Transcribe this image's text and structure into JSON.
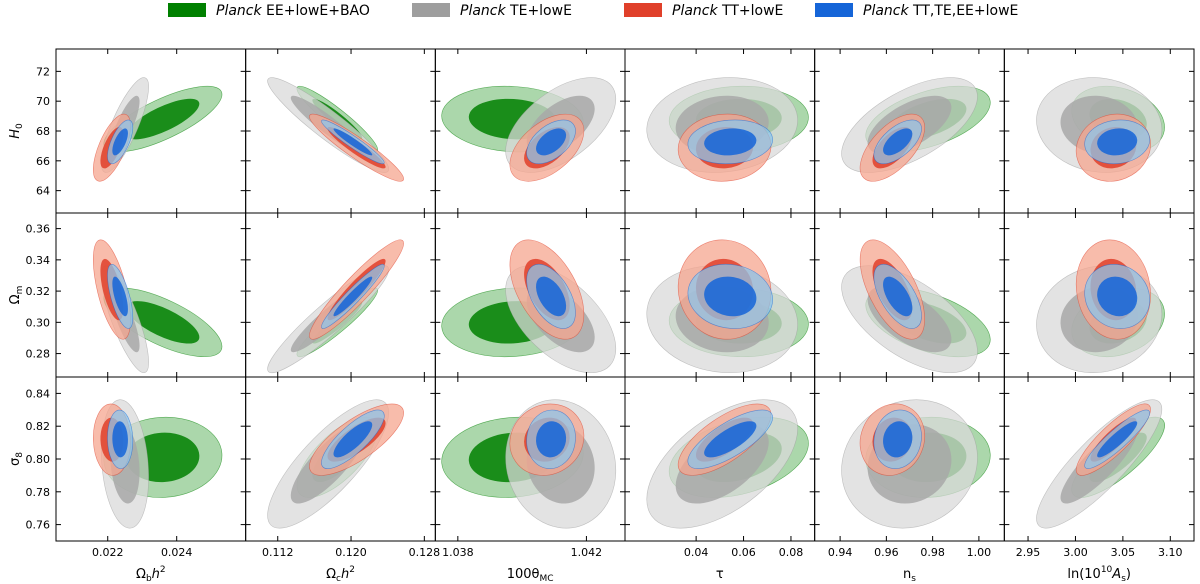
{
  "legend": [
    {
      "italic": "Planck",
      "rest": " EE+lowE+BAO",
      "color": "#008000"
    },
    {
      "italic": "Planck",
      "rest": " TE+lowE",
      "color": "#9e9e9e"
    },
    {
      "italic": "Planck",
      "rest": " TT+lowE",
      "color": "#e0402a"
    },
    {
      "italic": "Planck",
      "rest": " TT,TE,EE+lowE",
      "color": "#1565d8"
    }
  ],
  "chart_data": {
    "type": "scatter",
    "description_kind": "triangle-free grid of 2D confidence contours (68% and 95%)",
    "columns": [
      {
        "base": "Ω",
        "sub": "b",
        "rest": "h",
        "sup": "2",
        "ticks": [
          0.022,
          0.024
        ],
        "tick_labels": [
          "0.022",
          "0.024"
        ],
        "range": [
          0.0205,
          0.026
        ]
      },
      {
        "base": "Ω",
        "sub": "c",
        "rest": "h",
        "sup": "2",
        "ticks": [
          0.112,
          0.12,
          0.128
        ],
        "tick_labels": [
          "0.112",
          "0.120",
          "0.128"
        ],
        "range": [
          0.1085,
          0.1292
        ]
      },
      {
        "base": "100θ",
        "sub": "MC",
        "rest": "",
        "sup": "",
        "ticks": [
          1.038,
          1.042
        ],
        "tick_labels": [
          "1.038",
          "1.042"
        ],
        "range": [
          1.0373,
          1.0432
        ]
      },
      {
        "base": "τ",
        "sub": "",
        "rest": "",
        "sup": "",
        "ticks": [
          0.04,
          0.06,
          0.08
        ],
        "tick_labels": [
          "0.04",
          "0.06",
          "0.08"
        ],
        "range": [
          0.01,
          0.09
        ]
      },
      {
        "base": "n",
        "sub": "s",
        "rest": "",
        "sup": "",
        "ticks": [
          0.94,
          0.96,
          0.98,
          1.0
        ],
        "tick_labels": [
          "0.94",
          "0.96",
          "0.98",
          "1.00"
        ],
        "range": [
          0.929,
          1.011
        ]
      },
      {
        "base": "ln(10",
        "sub": "",
        "rest": "",
        "sup": "10",
        "post": "A",
        "postsub": "s",
        "postclose": ")",
        "ticks": [
          2.95,
          3.0,
          3.05,
          3.1
        ],
        "tick_labels": [
          "2.95",
          "3.00",
          "3.05",
          "3.10"
        ],
        "range": [
          2.925,
          3.125
        ]
      }
    ],
    "rows": [
      {
        "base": "H",
        "sub": "0",
        "ticks": [
          64,
          66,
          68,
          70,
          72
        ],
        "tick_labels": [
          "64",
          "66",
          "68",
          "70",
          "72"
        ],
        "range": [
          62.5,
          73.5
        ]
      },
      {
        "base": "Ω",
        "sub": "m",
        "ticks": [
          0.28,
          0.3,
          0.32,
          0.34,
          0.36
        ],
        "tick_labels": [
          "0.28",
          "0.30",
          "0.32",
          "0.34",
          "0.36"
        ],
        "range": [
          0.265,
          0.37
        ]
      },
      {
        "base": "σ",
        "sub": "8",
        "ticks": [
          0.76,
          0.78,
          0.8,
          0.82,
          0.84
        ],
        "tick_labels": [
          "0.76",
          "0.78",
          "0.80",
          "0.82",
          "0.84"
        ],
        "range": [
          0.75,
          0.85
        ]
      }
    ],
    "series": [
      {
        "name": "Planck EE+lowE+BAO",
        "color_fill95": "#8fc98f",
        "color_fill68": "#008000",
        "color_edge": "#008000",
        "means_x": [
          0.0236,
          0.1185,
          1.0397,
          0.058,
          0.978,
          3.045
        ],
        "sigmas_x": [
          0.0007,
          0.0018,
          0.0009,
          0.012,
          0.011,
          0.02
        ],
        "means_y": [
          68.8,
          0.3,
          0.801
        ],
        "sigmas_y": [
          0.9,
          0.009,
          0.01
        ],
        "rho": [
          [
            0.75,
            -0.93,
            -0.1,
            0.05,
            0.5,
            -0.25
          ],
          [
            -0.7,
            0.93,
            0.1,
            -0.05,
            -0.5,
            0.25
          ],
          [
            0.05,
            0.7,
            0.1,
            0.35,
            0.05,
            0.8
          ]
        ]
      },
      {
        "name": "Planck TE+lowE",
        "color_fill95": "#d9d9d9",
        "color_fill68": "#a8a8a8",
        "color_edge": "#9e9e9e",
        "means_x": [
          0.0225,
          0.1175,
          1.0412,
          0.051,
          0.97,
          3.025
        ],
        "sigmas_x": [
          0.00028,
          0.0027,
          0.0007,
          0.013,
          0.012,
          0.027
        ],
        "means_y": [
          68.4,
          0.302,
          0.797
        ],
        "sigmas_y": [
          1.3,
          0.014,
          0.016
        ],
        "rho": [
          [
            0.8,
            -0.93,
            0.55,
            0.1,
            0.6,
            -0.1
          ],
          [
            -0.8,
            0.93,
            -0.55,
            -0.1,
            -0.6,
            0.1
          ],
          [
            -0.2,
            0.8,
            -0.1,
            0.55,
            0.1,
            0.85
          ]
        ]
      },
      {
        "name": "Planck TT+lowE",
        "color_fill95": "#f5a58f",
        "color_fill68": "#e0402a",
        "color_edge": "#e0402a",
        "means_x": [
          0.02212,
          0.1206,
          1.04077,
          0.052,
          0.9626,
          3.04
        ],
        "sigmas_x": [
          0.00022,
          0.0021,
          0.00047,
          0.008,
          0.0057,
          0.016
        ],
        "means_y": [
          66.88,
          0.321,
          0.8118
        ],
        "sigmas_y": [
          0.92,
          0.013,
          0.0089
        ],
        "rho": [
          [
            0.65,
            -0.93,
            0.5,
            0.05,
            0.6,
            0.1
          ],
          [
            -0.6,
            0.93,
            -0.5,
            -0.05,
            -0.6,
            -0.1
          ],
          [
            -0.05,
            0.75,
            0.1,
            0.7,
            0.1,
            0.85
          ]
        ]
      },
      {
        "name": "Planck TT,TE,EE+lowE",
        "color_fill95": "#8ec5eb",
        "color_fill68": "#1565d8",
        "color_edge": "#1565d8",
        "means_x": [
          0.02236,
          0.1202,
          1.0409,
          0.0544,
          0.9649,
          3.044
        ],
        "sigmas_x": [
          0.00015,
          0.0014,
          0.00031,
          0.0073,
          0.0042,
          0.014
        ],
        "means_y": [
          67.27,
          0.3166,
          0.812
        ],
        "sigmas_y": [
          0.6,
          0.0084,
          0.0073
        ],
        "rho": [
          [
            0.65,
            -0.95,
            0.5,
            0.1,
            0.6,
            0.1
          ],
          [
            -0.65,
            0.95,
            -0.5,
            -0.1,
            -0.6,
            -0.1
          ],
          [
            -0.05,
            0.8,
            0.05,
            0.75,
            0.1,
            0.9
          ]
        ]
      }
    ],
    "levels": [
      "68%",
      "95%"
    ],
    "grid": false,
    "legend_position": "top"
  }
}
